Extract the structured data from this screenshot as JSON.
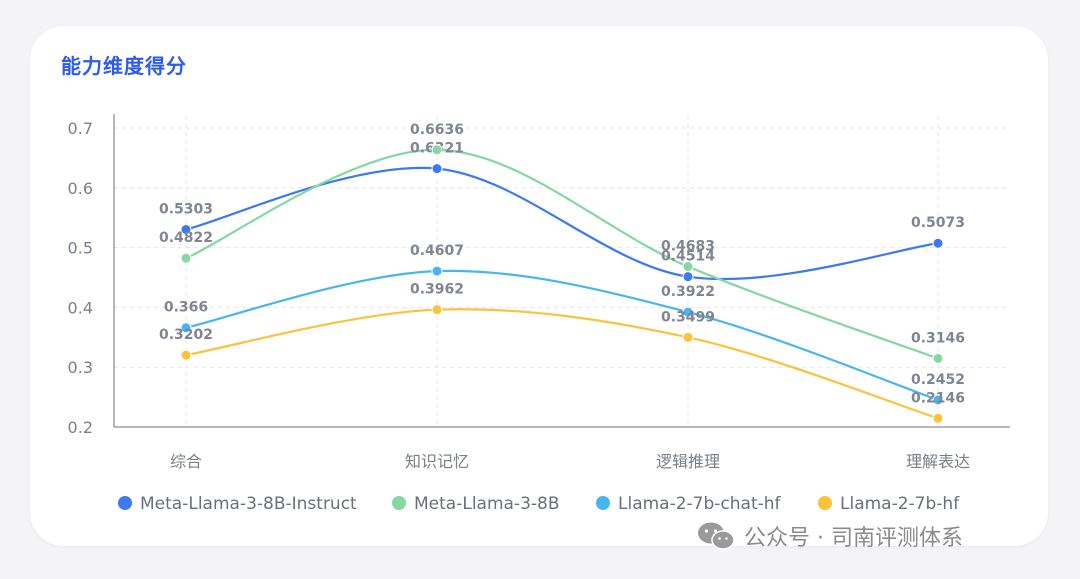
{
  "header": {
    "title": "能力维度得分"
  },
  "watermark": {
    "text": "公众号 · 司南评测体系"
  },
  "colors": {
    "title": "#2d5bf0",
    "axis_text": "#7b7f8a",
    "grid": "#e3e5ea",
    "axis_line": "#6e7079"
  },
  "chart_data": {
    "type": "line",
    "title": "能力维度得分",
    "categories": [
      "综合",
      "知识记忆",
      "逻辑推理",
      "理解表达"
    ],
    "ylim": [
      0.2,
      0.7
    ],
    "yticks": [
      "0.2",
      "0.3",
      "0.4",
      "0.5",
      "0.6",
      "0.7"
    ],
    "grid": true,
    "legend_position": "bottom",
    "series": [
      {
        "name": "Meta-Llama-3-8B-Instruct",
        "color": "#3d7af0",
        "values": [
          0.5303,
          0.6321,
          0.4514,
          0.5073
        ],
        "labels": [
          "0.5303",
          "0.6321",
          "0.4514",
          "0.5073"
        ]
      },
      {
        "name": "Meta-Llama-3-8B",
        "color": "#86d8a2",
        "values": [
          0.4822,
          0.6636,
          0.4683,
          0.3146
        ],
        "labels": [
          "0.4822",
          "0.6636",
          "0.4683",
          "0.3146"
        ]
      },
      {
        "name": "Llama-2-7b-chat-hf",
        "color": "#47b6f0",
        "values": [
          0.366,
          0.4607,
          0.3922,
          0.2452
        ],
        "labels": [
          "0.366",
          "0.4607",
          "0.3922",
          "0.2452"
        ]
      },
      {
        "name": "Llama-2-7b-hf",
        "color": "#fbc23c",
        "values": [
          0.3202,
          0.3962,
          0.3499,
          0.2146
        ],
        "labels": [
          "0.3202",
          "0.3962",
          "0.3499",
          "0.2146"
        ]
      }
    ]
  }
}
